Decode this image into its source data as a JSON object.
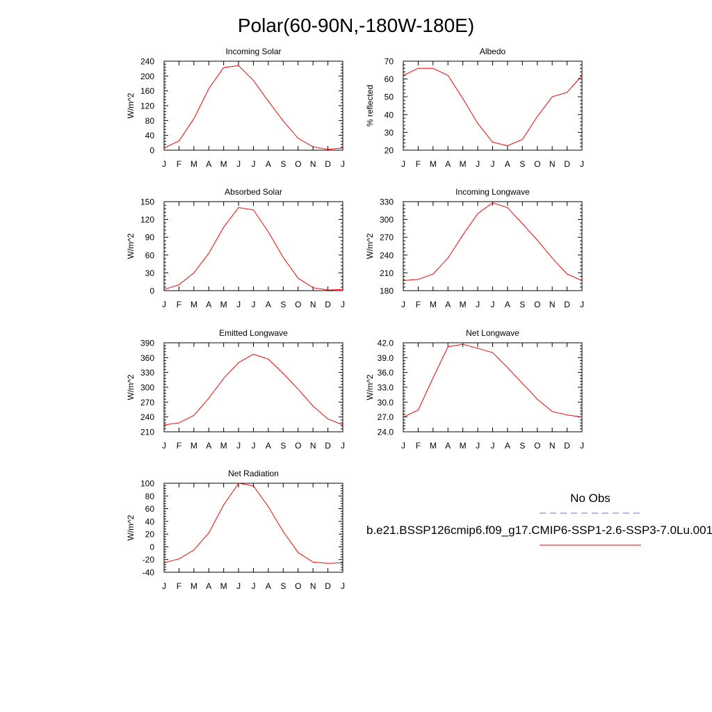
{
  "figure": {
    "title": "Polar(60-90N,-180W-180E)"
  },
  "months": [
    "J",
    "F",
    "M",
    "A",
    "M",
    "J",
    "J",
    "A",
    "S",
    "O",
    "N",
    "D",
    "J"
  ],
  "legend": {
    "obs_label": "No Obs",
    "obs_color": "#6a6aff",
    "model_label": "b.e21.BSSP126cmip6.f09_g17.CMIP6-SSP1-2.6-SSP3-7.0Lu.001",
    "model_color": "#ff0000"
  },
  "chart_data": [
    {
      "type": "line",
      "title": "Incoming Solar",
      "ylabel": "W/m^2",
      "ylim": [
        0,
        240
      ],
      "yticks": [
        "0",
        "40",
        "80",
        "120",
        "160",
        "200",
        "240"
      ],
      "x": [
        "J",
        "F",
        "M",
        "A",
        "M",
        "J",
        "J",
        "A",
        "S",
        "O",
        "N",
        "D",
        "J"
      ],
      "series": [
        {
          "color": "#ff0000",
          "values": [
            6,
            25,
            85,
            166,
            223,
            228,
            188,
            132,
            79,
            32,
            9,
            2,
            6
          ]
        }
      ]
    },
    {
      "type": "line",
      "title": "Albedo",
      "ylabel": "% reflected",
      "ylim": [
        20,
        70
      ],
      "yticks": [
        "20",
        "30",
        "40",
        "50",
        "60",
        "70"
      ],
      "x": [
        "J",
        "F",
        "M",
        "A",
        "M",
        "J",
        "J",
        "A",
        "S",
        "O",
        "N",
        "D",
        "J"
      ],
      "series": [
        {
          "color": "#ff0000",
          "values": [
            62,
            66,
            66,
            62,
            49,
            35,
            24.5,
            22.5,
            26,
            39,
            50,
            52.5,
            62
          ]
        }
      ]
    },
    {
      "type": "line",
      "title": "Absorbed Solar",
      "ylabel": "W/m^2",
      "ylim": [
        0,
        150
      ],
      "yticks": [
        "0",
        "30",
        "60",
        "90",
        "120",
        "150"
      ],
      "x": [
        "J",
        "F",
        "M",
        "A",
        "M",
        "J",
        "J",
        "A",
        "S",
        "O",
        "N",
        "D",
        "J"
      ],
      "series": [
        {
          "color": "#ff0000",
          "values": [
            2,
            10,
            30,
            63,
            107,
            140,
            136,
            99,
            56,
            21,
            5,
            1,
            2
          ]
        }
      ]
    },
    {
      "type": "line",
      "title": "Incoming Longwave",
      "ylabel": "W/m^2",
      "ylim": [
        180,
        330
      ],
      "yticks": [
        "180",
        "210",
        "240",
        "270",
        "300",
        "330"
      ],
      "x": [
        "J",
        "F",
        "M",
        "A",
        "M",
        "J",
        "J",
        "A",
        "S",
        "O",
        "N",
        "D",
        "J"
      ],
      "series": [
        {
          "color": "#ff0000",
          "values": [
            197,
            199,
            208,
            235,
            274,
            310,
            328,
            320,
            293,
            265,
            235,
            208,
            197
          ]
        }
      ]
    },
    {
      "type": "line",
      "title": "Emitted Longwave",
      "ylabel": "W/m^2",
      "ylim": [
        210,
        390
      ],
      "yticks": [
        "210",
        "240",
        "270",
        "300",
        "330",
        "360",
        "390"
      ],
      "x": [
        "J",
        "F",
        "M",
        "A",
        "M",
        "J",
        "J",
        "A",
        "S",
        "O",
        "N",
        "D",
        "J"
      ],
      "series": [
        {
          "color": "#ff0000",
          "values": [
            224,
            228,
            243,
            278,
            318,
            350,
            367,
            357,
            328,
            296,
            262,
            236,
            224
          ]
        }
      ]
    },
    {
      "type": "line",
      "title": "Net Longwave",
      "ylabel": "W/m^2",
      "ylim": [
        24,
        42
      ],
      "yticks": [
        "24.0",
        "27.0",
        "30.0",
        "33.0",
        "36.0",
        "39.0",
        "42.0"
      ],
      "x": [
        "J",
        "F",
        "M",
        "A",
        "M",
        "J",
        "J",
        "A",
        "S",
        "O",
        "N",
        "D",
        "J"
      ],
      "series": [
        {
          "color": "#ff0000",
          "values": [
            27.0,
            28.4,
            34.9,
            41.2,
            41.7,
            40.9,
            40.0,
            37.0,
            33.8,
            30.6,
            28.1,
            27.4,
            27.0
          ]
        }
      ]
    },
    {
      "type": "line",
      "title": "Net Radiation",
      "ylabel": "W/m^2",
      "ylim": [
        -40,
        100
      ],
      "yticks": [
        "-40",
        "-20",
        "0",
        "20",
        "40",
        "60",
        "80",
        "100"
      ],
      "x": [
        "J",
        "F",
        "M",
        "A",
        "M",
        "J",
        "J",
        "A",
        "S",
        "O",
        "N",
        "D",
        "J"
      ],
      "series": [
        {
          "color": "#ff0000",
          "values": [
            -25,
            -19,
            -5,
            22,
            66,
            100,
            96,
            63,
            24,
            -9,
            -24,
            -26,
            -25
          ]
        }
      ]
    }
  ]
}
